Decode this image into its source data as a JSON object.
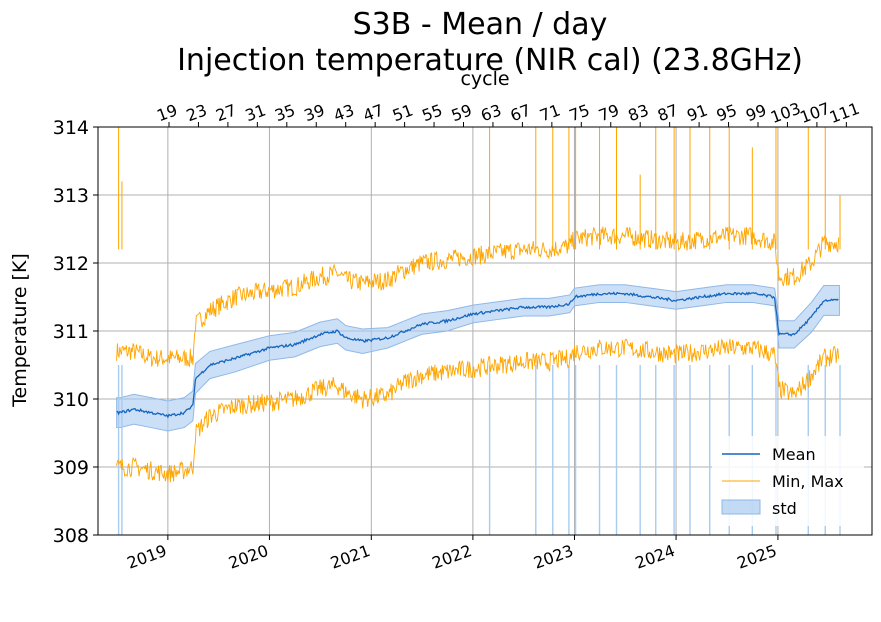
{
  "chart_data": {
    "type": "line",
    "title": "S3B - Mean / day",
    "subtitle": "Injection temperature (NIR cal) (23.8GHz)",
    "ylabel": "Temperature [K]",
    "top_axis_label": "cycle",
    "ylim": [
      308,
      314
    ],
    "xlim": [
      "2018-04-25",
      "2025-12-05"
    ],
    "y_ticks": [
      308,
      309,
      310,
      311,
      312,
      313,
      314
    ],
    "x_ticks": [
      "2019",
      "2020",
      "2021",
      "2022",
      "2023",
      "2024",
      "2025"
    ],
    "cycle_ticks": [
      19,
      23,
      27,
      31,
      35,
      39,
      43,
      47,
      51,
      55,
      59,
      63,
      67,
      71,
      75,
      79,
      83,
      87,
      91,
      95,
      99,
      103,
      107,
      111
    ],
    "grid": true,
    "legend": {
      "position": "lower-right",
      "entries": [
        "Mean",
        "Min, Max",
        "std"
      ]
    },
    "colors": {
      "mean": "#1565c0",
      "minmax": "#ffa500",
      "std": "#a8cbf0",
      "grid": "#b0b0b0"
    },
    "series": [
      {
        "name": "Mean",
        "x": [
          "2018-07-01",
          "2018-07-15",
          "2018-09-01",
          "2018-11-01",
          "2019-01-01",
          "2019-03-01",
          "2019-04-01",
          "2019-04-10",
          "2019-06-01",
          "2019-09-01",
          "2020-01-01",
          "2020-04-01",
          "2020-07-01",
          "2020-09-01",
          "2020-10-01",
          "2020-12-01",
          "2021-03-01",
          "2021-05-01",
          "2021-07-01",
          "2021-10-01",
          "2022-01-01",
          "2022-04-01",
          "2022-07-01",
          "2022-10-01",
          "2022-12-15",
          "2023-01-01",
          "2023-04-01",
          "2023-07-01",
          "2023-10-01",
          "2024-01-01",
          "2024-04-01",
          "2024-07-01",
          "2024-10-01",
          "2024-12-20",
          "2025-01-05",
          "2025-03-01",
          "2025-05-01",
          "2025-06-15",
          "2025-08-10"
        ],
        "values": [
          309.8,
          309.8,
          309.85,
          309.8,
          309.75,
          309.8,
          309.9,
          310.3,
          310.5,
          310.6,
          310.75,
          310.8,
          310.95,
          311.0,
          310.9,
          310.85,
          310.9,
          311.0,
          311.1,
          311.15,
          311.25,
          311.3,
          311.35,
          311.35,
          311.4,
          311.5,
          311.55,
          311.55,
          311.5,
          311.45,
          311.5,
          311.55,
          311.55,
          311.5,
          310.95,
          310.95,
          311.2,
          311.45,
          311.45
        ]
      },
      {
        "name": "Max",
        "x": [
          "2018-07-01",
          "2018-07-15",
          "2018-09-01",
          "2018-11-01",
          "2019-01-01",
          "2019-03-01",
          "2019-04-01",
          "2019-04-10",
          "2019-06-01",
          "2019-09-01",
          "2020-01-01",
          "2020-04-01",
          "2020-07-01",
          "2020-09-01",
          "2020-10-01",
          "2020-12-01",
          "2021-03-01",
          "2021-05-01",
          "2021-07-01",
          "2021-10-01",
          "2022-01-01",
          "2022-04-01",
          "2022-07-01",
          "2022-10-01",
          "2022-12-15",
          "2023-01-01",
          "2023-04-01",
          "2023-07-01",
          "2023-10-01",
          "2024-01-01",
          "2024-04-01",
          "2024-07-01",
          "2024-10-01",
          "2024-12-20",
          "2025-01-05",
          "2025-03-01",
          "2025-05-01",
          "2025-06-15",
          "2025-08-10"
        ],
        "values": [
          310.7,
          310.7,
          310.7,
          310.6,
          310.6,
          310.6,
          310.6,
          311.1,
          311.3,
          311.5,
          311.6,
          311.65,
          311.8,
          311.85,
          311.75,
          311.7,
          311.75,
          311.9,
          312.0,
          312.05,
          312.1,
          312.15,
          312.2,
          312.2,
          312.25,
          312.35,
          312.4,
          312.4,
          312.35,
          312.3,
          312.35,
          312.4,
          312.4,
          312.3,
          311.8,
          311.8,
          312.0,
          312.3,
          312.3
        ]
      },
      {
        "name": "Min",
        "x": [
          "2018-07-01",
          "2018-07-15",
          "2018-09-01",
          "2018-11-01",
          "2019-01-01",
          "2019-03-01",
          "2019-04-01",
          "2019-04-10",
          "2019-06-01",
          "2019-09-01",
          "2020-01-01",
          "2020-04-01",
          "2020-07-01",
          "2020-09-01",
          "2020-10-01",
          "2020-12-01",
          "2021-03-01",
          "2021-05-01",
          "2021-07-01",
          "2021-10-01",
          "2022-01-01",
          "2022-04-01",
          "2022-07-01",
          "2022-10-01",
          "2022-12-15",
          "2023-01-01",
          "2023-04-01",
          "2023-07-01",
          "2023-10-01",
          "2024-01-01",
          "2024-04-01",
          "2024-07-01",
          "2024-10-01",
          "2024-12-20",
          "2025-01-05",
          "2025-03-01",
          "2025-05-01",
          "2025-06-15",
          "2025-08-10"
        ],
        "values": [
          309.0,
          309.0,
          309.0,
          308.95,
          308.9,
          308.95,
          309.0,
          309.5,
          309.75,
          309.9,
          309.95,
          310.0,
          310.15,
          310.2,
          310.1,
          310.0,
          310.05,
          310.25,
          310.35,
          310.4,
          310.45,
          310.5,
          310.55,
          310.55,
          310.6,
          310.7,
          310.75,
          310.75,
          310.7,
          310.65,
          310.7,
          310.75,
          310.75,
          310.65,
          310.15,
          310.05,
          310.35,
          310.6,
          310.65
        ]
      },
      {
        "name": "std",
        "x": [
          "2018-07-01",
          "2018-07-15",
          "2018-09-01",
          "2018-11-01",
          "2019-01-01",
          "2019-03-01",
          "2019-04-01",
          "2019-04-10",
          "2019-06-01",
          "2019-09-01",
          "2020-01-01",
          "2020-04-01",
          "2020-07-01",
          "2020-09-01",
          "2020-10-01",
          "2020-12-01",
          "2021-03-01",
          "2021-05-01",
          "2021-07-01",
          "2021-10-01",
          "2022-01-01",
          "2022-04-01",
          "2022-07-01",
          "2022-10-01",
          "2022-12-15",
          "2023-01-01",
          "2023-04-01",
          "2023-07-01",
          "2023-10-01",
          "2024-01-01",
          "2024-04-01",
          "2024-07-01",
          "2024-10-01",
          "2024-12-20",
          "2025-01-05",
          "2025-03-01",
          "2025-05-01",
          "2025-06-15",
          "2025-08-10"
        ],
        "values": [
          0.22,
          0.22,
          0.22,
          0.22,
          0.22,
          0.22,
          0.22,
          0.22,
          0.2,
          0.2,
          0.18,
          0.18,
          0.18,
          0.18,
          0.18,
          0.18,
          0.15,
          0.15,
          0.15,
          0.15,
          0.13,
          0.13,
          0.13,
          0.13,
          0.13,
          0.13,
          0.13,
          0.13,
          0.13,
          0.13,
          0.13,
          0.13,
          0.13,
          0.13,
          0.2,
          0.2,
          0.22,
          0.22,
          0.22
        ]
      }
    ],
    "spikes": [
      {
        "x": "2018-07-08",
        "max": 314,
        "min": 308
      },
      {
        "x": "2018-07-20",
        "max": 313.2,
        "min": 308
      },
      {
        "x": "2022-03-02",
        "max": 314,
        "min": 308
      },
      {
        "x": "2022-08-15",
        "max": 314,
        "min": 308
      },
      {
        "x": "2022-10-15",
        "max": 314,
        "min": 308
      },
      {
        "x": "2022-12-12",
        "max": 314,
        "min": 308
      },
      {
        "x": "2023-01-05",
        "max": 314,
        "min": 308
      },
      {
        "x": "2023-04-01",
        "max": 314,
        "min": 308
      },
      {
        "x": "2023-06-01",
        "max": 314,
        "min": 308
      },
      {
        "x": "2023-08-25",
        "max": 313.3,
        "min": 308
      },
      {
        "x": "2023-10-20",
        "max": 314,
        "min": 308
      },
      {
        "x": "2023-12-25",
        "max": 314,
        "min": 308
      },
      {
        "x": "2024-02-20",
        "max": 314,
        "min": 308
      },
      {
        "x": "2024-05-01",
        "max": 314,
        "min": 308
      },
      {
        "x": "2024-07-10",
        "max": 314,
        "min": 308
      },
      {
        "x": "2024-10-01",
        "max": 313.7,
        "min": 308
      },
      {
        "x": "2024-12-25",
        "max": 314,
        "min": 308
      },
      {
        "x": "2025-04-20",
        "max": 314,
        "min": 308
      },
      {
        "x": "2025-06-20",
        "max": 314,
        "min": 308
      },
      {
        "x": "2025-08-12",
        "max": 313.0,
        "min": 308
      }
    ]
  }
}
